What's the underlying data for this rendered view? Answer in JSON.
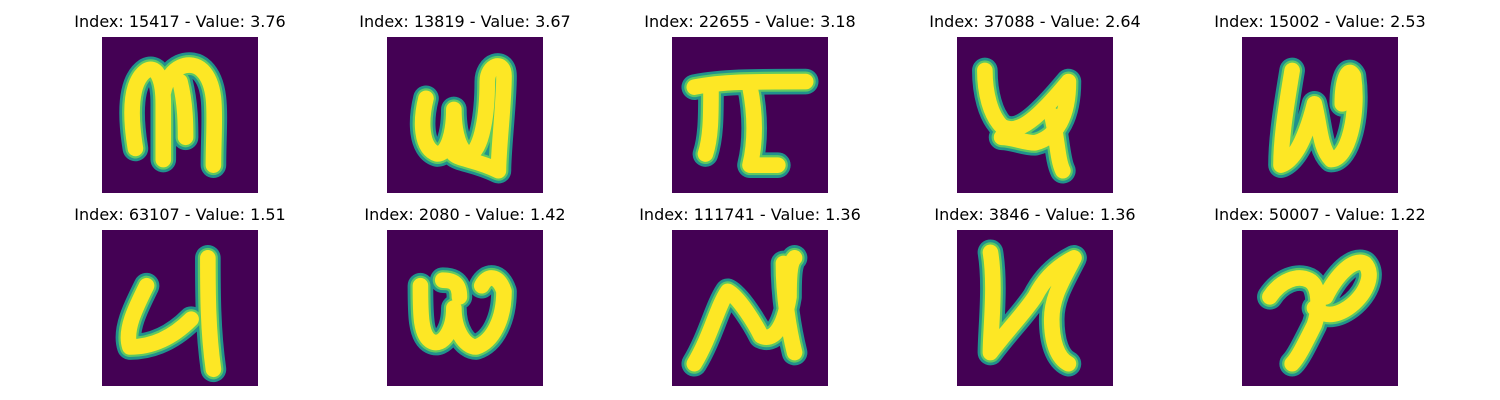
{
  "colors": {
    "background": "#440154",
    "stroke_edge": "#21918c",
    "stroke_mid": "#5ec962",
    "stroke_core": "#fde725"
  },
  "panels": [
    {
      "title": "Index: 15417 - Value: 3.76",
      "glyph": "glyph-a"
    },
    {
      "title": "Index: 13819 - Value: 3.67",
      "glyph": "glyph-b"
    },
    {
      "title": "Index: 22655 - Value: 3.18",
      "glyph": "glyph-c"
    },
    {
      "title": "Index: 37088 - Value: 2.64",
      "glyph": "glyph-d"
    },
    {
      "title": "Index: 15002 - Value: 2.53",
      "glyph": "glyph-e"
    },
    {
      "title": "Index: 63107 - Value: 1.51",
      "glyph": "glyph-f"
    },
    {
      "title": "Index: 2080 - Value: 1.42",
      "glyph": "glyph-g"
    },
    {
      "title": "Index: 111741 - Value: 1.36",
      "glyph": "glyph-h"
    },
    {
      "title": "Index: 3846 - Value: 1.36",
      "glyph": "glyph-i"
    },
    {
      "title": "Index: 50007 - Value: 1.22",
      "glyph": "glyph-j"
    }
  ]
}
